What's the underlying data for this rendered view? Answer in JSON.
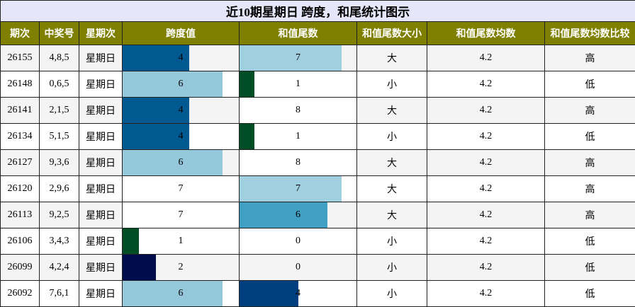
{
  "title": "近10期星期日 跨度，和尾统计图示",
  "header": [
    "期次",
    "中奖号",
    "星期次",
    "跨度值",
    "和值尾数",
    "和值尾数大小",
    "和值尾数均数",
    "和值尾数均数比较"
  ],
  "rows": [
    [
      "26155",
      "4,8,5",
      "星期日",
      4,
      7,
      "大",
      "4.2",
      "高"
    ],
    [
      "26148",
      "0,6,5",
      "星期日",
      6,
      1,
      "小",
      "4.2",
      "低"
    ],
    [
      "26141",
      "2,1,5",
      "星期日",
      4,
      8,
      "大",
      "4.2",
      "高"
    ],
    [
      "26134",
      "5,1,5",
      "星期日",
      4,
      1,
      "小",
      "4.2",
      "低"
    ],
    [
      "26127",
      "9,3,6",
      "星期日",
      6,
      8,
      "大",
      "4.2",
      "高"
    ],
    [
      "26120",
      "2,9,6",
      "星期日",
      7,
      7,
      "大",
      "4.2",
      "高"
    ],
    [
      "26113",
      "9,2,5",
      "星期日",
      7,
      6,
      "大",
      "4.2",
      "高"
    ],
    [
      "26106",
      "3,4,3",
      "星期日",
      1,
      0,
      "小",
      "4.2",
      "低"
    ],
    [
      "26099",
      "4,2,4",
      "星期日",
      2,
      0,
      "小",
      "4.2",
      "低"
    ],
    [
      "26092",
      "7,6,1",
      "星期日",
      6,
      4,
      "小",
      "4.2",
      "低"
    ]
  ],
  "bar_colors": {
    "3": [
      "#005a91",
      "#96c8dc",
      "#005a91",
      "#005a91",
      "#96c8dc",
      "#ffffff",
      "#ffffff",
      "#004d26",
      "#000d4d",
      "#96c8dc"
    ],
    "4": [
      "#a0cfe0",
      "#004d26",
      "#ffffff",
      "#004d26",
      "#ffffff",
      "#a0cfe0",
      "#40a0c4",
      "#ffffff",
      "#ffffff",
      "#003f7f"
    ]
  }
}
